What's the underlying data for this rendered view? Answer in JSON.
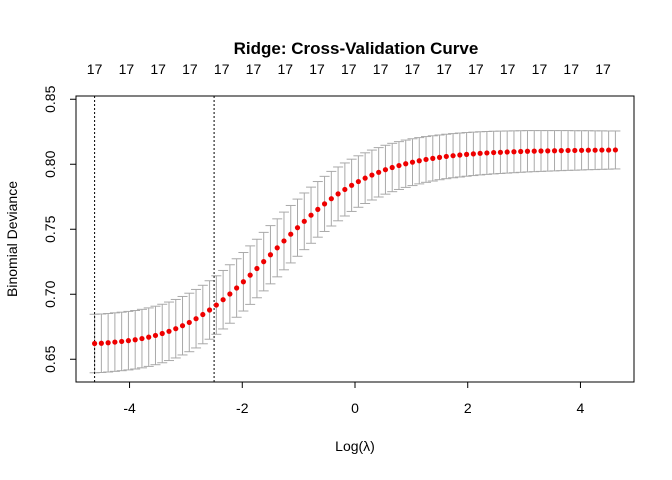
{
  "chart_data": {
    "type": "scatter",
    "title": "Ridge: Cross-Validation Curve",
    "xlabel": "Log(λ)",
    "ylabel": "Binomial Deviance",
    "xlim": [
      -4.95,
      4.95
    ],
    "ylim": [
      0.6325,
      0.8525
    ],
    "x_ticks": [
      -4,
      -2,
      0,
      2,
      4
    ],
    "x_tick_labels": [
      "-4",
      "-2",
      "0",
      "2",
      "4"
    ],
    "y_ticks": [
      0.65,
      0.7,
      0.75,
      0.8,
      0.85
    ],
    "y_tick_labels": [
      "0.65",
      "0.70",
      "0.75",
      "0.80",
      "0.85"
    ],
    "top_axis_labels": [
      "17",
      "17",
      "17",
      "17",
      "17",
      "17",
      "17",
      "17",
      "17",
      "17",
      "17",
      "17",
      "17",
      "17",
      "17",
      "17",
      "17"
    ],
    "vertical_lines": [
      -4.62,
      -2.5
    ],
    "colors": {
      "points": "#ee0000",
      "error_bars": "#a9a9a9",
      "vlines": "#000000",
      "text": "#000000"
    },
    "series": [
      {
        "x": [
          -4.62,
          -4.5,
          -4.38,
          -4.26,
          -4.14,
          -4.02,
          -3.9,
          -3.78,
          -3.66,
          -3.54,
          -3.42,
          -3.3,
          -3.18,
          -3.06,
          -2.94,
          -2.82,
          -2.7,
          -2.58,
          -2.46,
          -2.34,
          -2.22,
          -2.1,
          -1.98,
          -1.86,
          -1.74,
          -1.62,
          -1.5,
          -1.38,
          -1.26,
          -1.14,
          -1.02,
          -0.9,
          -0.78,
          -0.66,
          -0.54,
          -0.42,
          -0.3,
          -0.18,
          -0.06,
          0.06,
          0.18,
          0.3,
          0.42,
          0.54,
          0.66,
          0.78,
          0.9,
          1.02,
          1.14,
          1.26,
          1.38,
          1.5,
          1.62,
          1.74,
          1.86,
          1.98,
          2.1,
          2.22,
          2.34,
          2.46,
          2.58,
          2.7,
          2.82,
          2.94,
          3.06,
          3.18,
          3.3,
          3.42,
          3.54,
          3.66,
          3.78,
          3.9,
          4.02,
          4.14,
          4.26,
          4.38,
          4.5,
          4.62
        ],
        "y": [
          0.6621,
          0.6623,
          0.6627,
          0.6632,
          0.6637,
          0.6643,
          0.665,
          0.6659,
          0.667,
          0.6683,
          0.6698,
          0.6715,
          0.6735,
          0.6758,
          0.6783,
          0.6812,
          0.6844,
          0.6879,
          0.6917,
          0.6958,
          0.7002,
          0.7048,
          0.7096,
          0.7147,
          0.7198,
          0.7251,
          0.7304,
          0.7357,
          0.741,
          0.7462,
          0.7512,
          0.7561,
          0.7608,
          0.7653,
          0.7695,
          0.7735,
          0.7772,
          0.7806,
          0.7838,
          0.7867,
          0.7893,
          0.7917,
          0.7938,
          0.7958,
          0.7975,
          0.799,
          0.8004,
          0.8016,
          0.8027,
          0.8037,
          0.8045,
          0.8053,
          0.806,
          0.8066,
          0.8071,
          0.8076,
          0.808,
          0.8084,
          0.8087,
          0.809,
          0.8092,
          0.8094,
          0.8096,
          0.8098,
          0.81,
          0.8101,
          0.8102,
          0.8103,
          0.8104,
          0.8105,
          0.8106,
          0.8106,
          0.8107,
          0.8108,
          0.8108,
          0.8109,
          0.8109,
          0.811
        ],
        "err": [
          0.0225,
          0.0225,
          0.0225,
          0.0225,
          0.0225,
          0.0225,
          0.0225,
          0.0225,
          0.0225,
          0.0225,
          0.0225,
          0.0225,
          0.0225,
          0.0225,
          0.0225,
          0.0225,
          0.0225,
          0.0225,
          0.0225,
          0.0225,
          0.0225,
          0.0225,
          0.0225,
          0.0225,
          0.0225,
          0.0225,
          0.0224,
          0.0223,
          0.0222,
          0.0221,
          0.022,
          0.0218,
          0.0216,
          0.0214,
          0.0212,
          0.021,
          0.0207,
          0.0204,
          0.0201,
          0.0198,
          0.0195,
          0.0192,
          0.019,
          0.0188,
          0.0186,
          0.0184,
          0.0182,
          0.018,
          0.0178,
          0.0176,
          0.0174,
          0.0172,
          0.0171,
          0.017,
          0.0169,
          0.0168,
          0.0167,
          0.0166,
          0.0165,
          0.0164,
          0.0163,
          0.0162,
          0.0161,
          0.016,
          0.0159,
          0.0158,
          0.0157,
          0.0156,
          0.0155,
          0.0154,
          0.0153,
          0.0152,
          0.0151,
          0.015,
          0.0149,
          0.0148,
          0.0147,
          0.0146
        ]
      }
    ]
  }
}
